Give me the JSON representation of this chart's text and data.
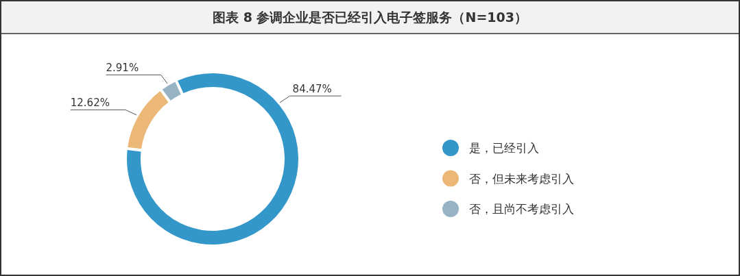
{
  "chart_data": {
    "type": "donut",
    "title": "图表 8 参调企业是否已经引入电子签服务（N=103）",
    "categories": [
      "是，已经引入",
      "否，但未来考虑引入",
      "否，且尚不考虑引入"
    ],
    "values": [
      84.47,
      12.62,
      2.91
    ],
    "colors": [
      "#3497c9",
      "#ecb877",
      "#97b3c4"
    ],
    "value_labels": [
      "84.47%",
      "12.62%",
      "2.91%"
    ],
    "legend": "right"
  }
}
